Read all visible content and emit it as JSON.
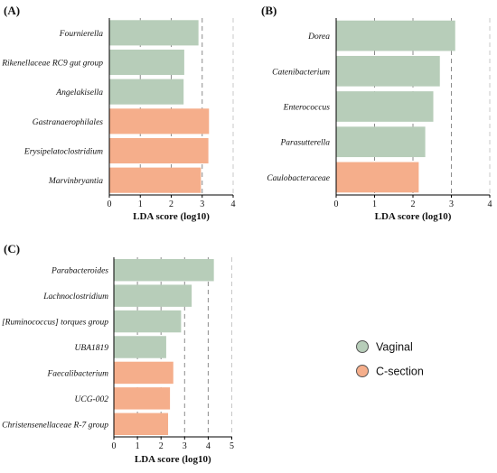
{
  "colors": {
    "vaginal": "#b7cdb9",
    "csection": "#f5ae8b",
    "axis": "#000000",
    "grid": "#8c8c8c",
    "grid_light": "#c8c8c8",
    "text": "#111111"
  },
  "legend": {
    "items": [
      {
        "label": "Vaginal",
        "color": "#b7cdb9"
      },
      {
        "label": "C-section",
        "color": "#f5ae8b"
      }
    ]
  },
  "chart_data": [
    {
      "type": "bar",
      "orientation": "horizontal",
      "panel_label": "(A)",
      "xlabel": "LDA score (log10)",
      "xlim": [
        0,
        4
      ],
      "xticks": [
        0,
        1,
        2,
        3,
        4
      ],
      "grid": "vertical dashed",
      "categories": [
        "Fournierella",
        "Rikenellaceae RC9 gut group",
        "Angelakisella",
        "Gastranaerophilales",
        "Erysipelatoclostridium",
        "Marvinbryantia"
      ],
      "values": [
        2.88,
        2.42,
        2.4,
        3.22,
        3.2,
        2.96
      ],
      "groups": [
        "Vaginal",
        "Vaginal",
        "Vaginal",
        "C-section",
        "C-section",
        "C-section"
      ]
    },
    {
      "type": "bar",
      "orientation": "horizontal",
      "panel_label": "(B)",
      "xlabel": "LDA score (log10)",
      "xlim": [
        0,
        4
      ],
      "xticks": [
        0,
        1,
        2,
        3,
        4
      ],
      "grid": "vertical dashed",
      "categories": [
        "Dorea",
        "Catenibacterium",
        "Enterococcus",
        "Parasutterella",
        "Caulobacteraceae"
      ],
      "values": [
        3.1,
        2.7,
        2.53,
        2.32,
        2.15
      ],
      "groups": [
        "Vaginal",
        "Vaginal",
        "Vaginal",
        "Vaginal",
        "C-section"
      ]
    },
    {
      "type": "bar",
      "orientation": "horizontal",
      "panel_label": "(C)",
      "xlabel": "LDA score (log10)",
      "xlim": [
        0,
        5
      ],
      "xticks": [
        0,
        1,
        2,
        3,
        4,
        5
      ],
      "grid": "vertical dashed",
      "categories": [
        "Parabacteroides",
        "Lachnoclostridium",
        "[Ruminococcus] torques group",
        "UBA1819",
        "Faecalibacterium",
        "UCG-002",
        "Christensenellaceae R-7 group"
      ],
      "values": [
        4.24,
        3.3,
        2.85,
        2.22,
        2.52,
        2.38,
        2.3
      ],
      "groups": [
        "Vaginal",
        "Vaginal",
        "Vaginal",
        "Vaginal",
        "C-section",
        "C-section",
        "C-section"
      ]
    }
  ]
}
